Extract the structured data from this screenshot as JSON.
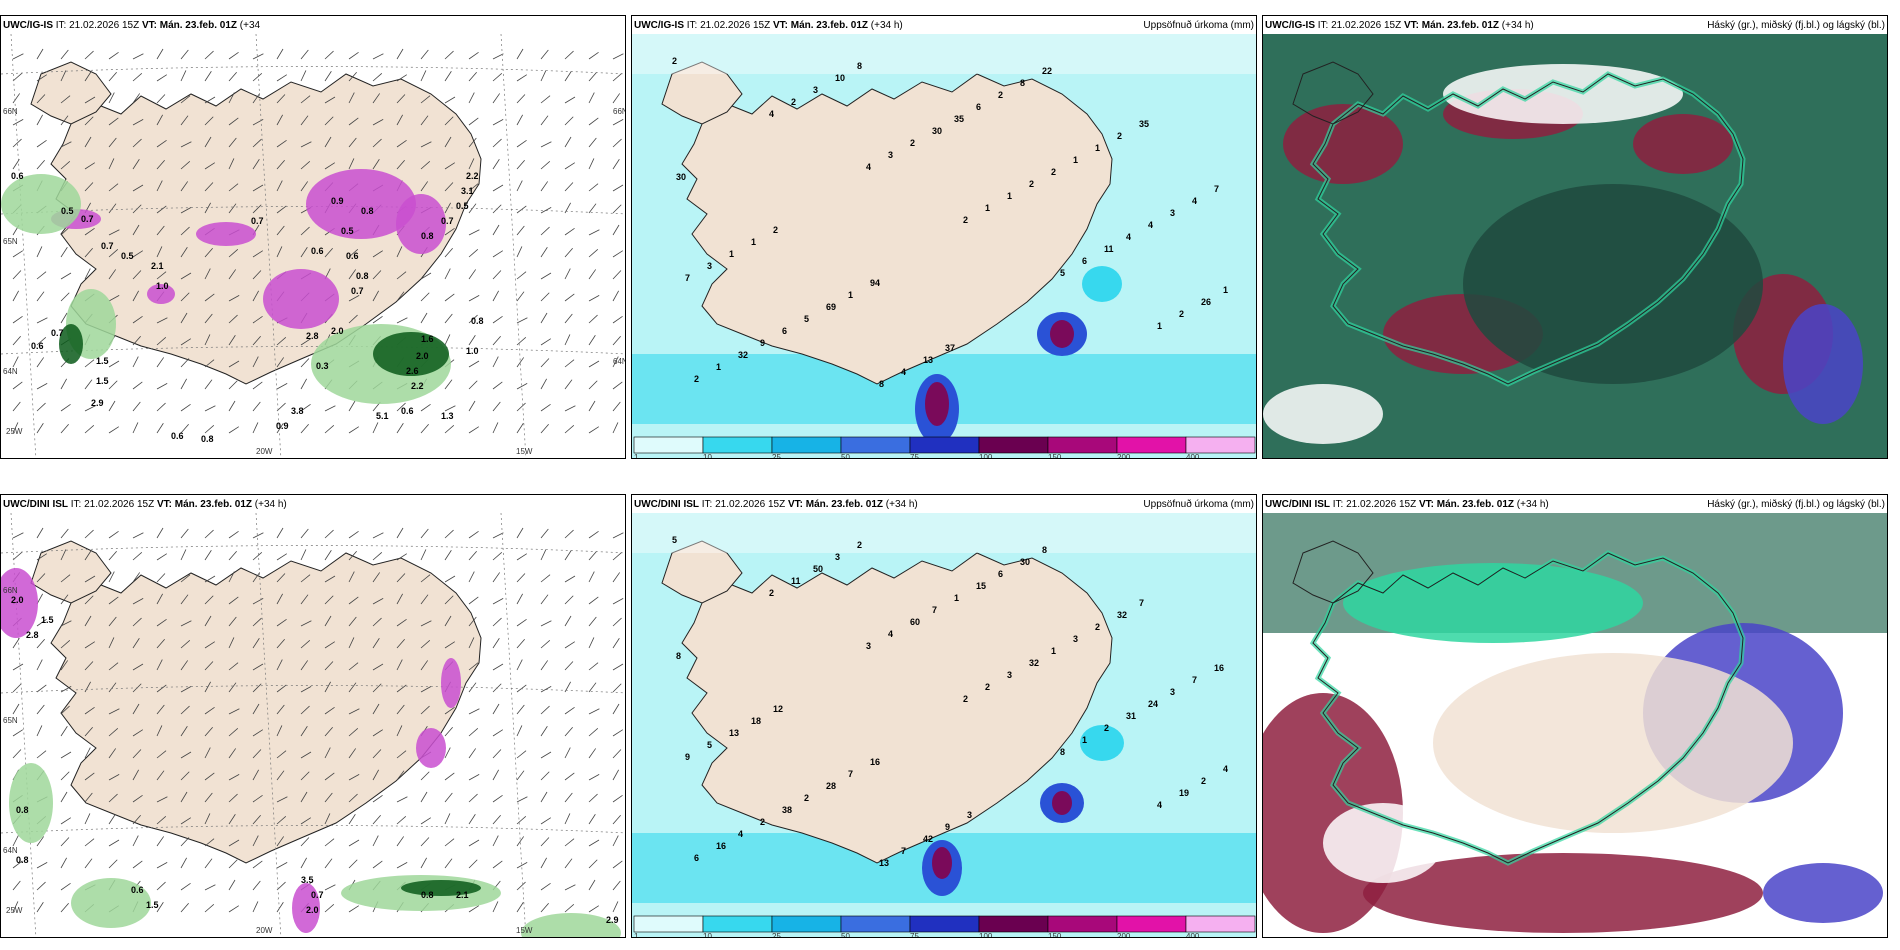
{
  "colors": {
    "land": "#f1e2d3",
    "sea": "#ffffff",
    "precip_light": "#b9f4f6",
    "precip_mid": "#37d8ee",
    "precip_blue": "#2a52d6",
    "precip_purple": "#7a0a5a",
    "precip_magenta": "#e212a8",
    "snow_magenta": "#c94fd0",
    "snow_green": "#9fd79a",
    "snow_darkgreen": "#0a5a1a",
    "cloud_teal": "#2f6f5a",
    "cloud_green": "#2fd6a0",
    "cloud_red": "#8e2040",
    "cloud_blue": "#4a44c8"
  },
  "panels": [
    {
      "id": "p1",
      "model": "UWC/IG-IS",
      "it": "IT: 21.02.2026 15Z",
      "vt": "VT: Mán. 23.feb. 01Z",
      "lead": "(+34",
      "lead2": "h)",
      "right": "",
      "type": "snow",
      "lat_labels": [
        "66N",
        "65N",
        "64N",
        "66N",
        "64N"
      ],
      "lon_labels": [
        "25W",
        "20W",
        "15W"
      ],
      "values": [
        "0.6",
        "0.5",
        "0.7",
        "0.7",
        "0.5",
        "2.1",
        "1.0",
        "0.6",
        "0.7",
        "1.5",
        "1.5",
        "2.9",
        "0.6",
        "0.8",
        "0.9",
        "3.8",
        "5.1",
        "0.6",
        "1.3",
        "2.2",
        "2.6",
        "2.0",
        "1.6",
        "1.0",
        "0.8",
        "2.8",
        "2.0",
        "0.7",
        "0.8",
        "0.6",
        "0.8",
        "0.7",
        "0.5",
        "3.1",
        "2.2",
        "0.9",
        "0.5",
        "0.8",
        "0.6",
        "0.7",
        "0.3"
      ]
    },
    {
      "id": "p2",
      "model": "UWC/IG-IS",
      "it": "IT: 21.02.2026 15Z",
      "vt": "VT: Mán. 23.feb. 01Z",
      "lead": "(+34 h)",
      "right": "Uppsöfnuð úrkoma (mm)",
      "type": "precip",
      "values": [
        "2",
        "4",
        "4",
        "2",
        "5",
        "1",
        "2",
        "2",
        "3",
        "1",
        "6",
        "2",
        "1",
        "3",
        "2",
        "1",
        "11",
        "26",
        "32",
        "10",
        "30",
        "2",
        "4",
        "1",
        "9",
        "8",
        "35",
        "2",
        "4",
        "7",
        "6",
        "8",
        "6",
        "1",
        "3",
        "3",
        "5",
        "4",
        "2",
        "1",
        "4",
        "1",
        "69",
        "13",
        "8",
        "2",
        "7",
        "1",
        "1",
        "37",
        "22",
        "35",
        "30",
        "2",
        "94"
      ],
      "legend": [
        "1",
        "10",
        "25",
        "50",
        "75",
        "100",
        "150",
        "200",
        "400"
      ]
    },
    {
      "id": "p3",
      "model": "UWC/IG-IS",
      "it": "IT: 21.02.2026 15Z",
      "vt": "VT: Mán. 23.feb. 01Z",
      "lead": "(+34 h)",
      "right": "Háský (gr.), miðský (fj.bl.) og lágský (bl.)",
      "type": "cloud"
    },
    {
      "id": "p4",
      "model": "UWC/DINI ISL",
      "it": "IT: 21.02.2026 15Z",
      "vt": "VT: Mán. 23.feb. 01Z",
      "lead": "(+34 h)",
      "right": "",
      "type": "snow",
      "lat_labels": [
        "66N",
        "65N",
        "64N"
      ],
      "lon_labels": [
        "25W",
        "20W",
        "15W"
      ],
      "values": [
        "2.0",
        "1.5",
        "2.8",
        "0.8",
        "0.8",
        "0.6",
        "1.5",
        "0.8",
        "2.1",
        "2.9",
        "0.7",
        "3.5",
        "2.0"
      ]
    },
    {
      "id": "p5",
      "model": "UWC/DINI ISL",
      "it": "IT: 21.02.2026 15Z",
      "vt": "VT: Mán. 23.feb. 01Z",
      "lead": "(+34 h)",
      "right": "Uppsöfnuð úrkoma (mm)",
      "type": "precip",
      "values": [
        "5",
        "2",
        "3",
        "2",
        "8",
        "4",
        "6",
        "11",
        "4",
        "2",
        "1",
        "19",
        "16",
        "50",
        "60",
        "3",
        "2",
        "2",
        "4",
        "3",
        "7",
        "32",
        "31",
        "4",
        "2",
        "2",
        "1",
        "1",
        "24",
        "9",
        "38",
        "13",
        "15",
        "3",
        "3",
        "5",
        "2",
        "7",
        "6",
        "2",
        "7",
        "13",
        "28",
        "42",
        "30",
        "32",
        "16",
        "18",
        "7",
        "9",
        "8",
        "7",
        "8",
        "12",
        "16",
        "3"
      ],
      "legend": [
        "1",
        "10",
        "25",
        "50",
        "75",
        "100",
        "150",
        "200",
        "400"
      ]
    },
    {
      "id": "p6",
      "model": "UWC/DINI ISL",
      "it": "IT: 21.02.2026 15Z",
      "vt": "VT: Mán. 23.feb. 01Z",
      "lead": "(+34 h)",
      "right": "Háský (gr.), miðský (fj.bl.) og lágský (bl.)",
      "type": "cloud"
    }
  ]
}
